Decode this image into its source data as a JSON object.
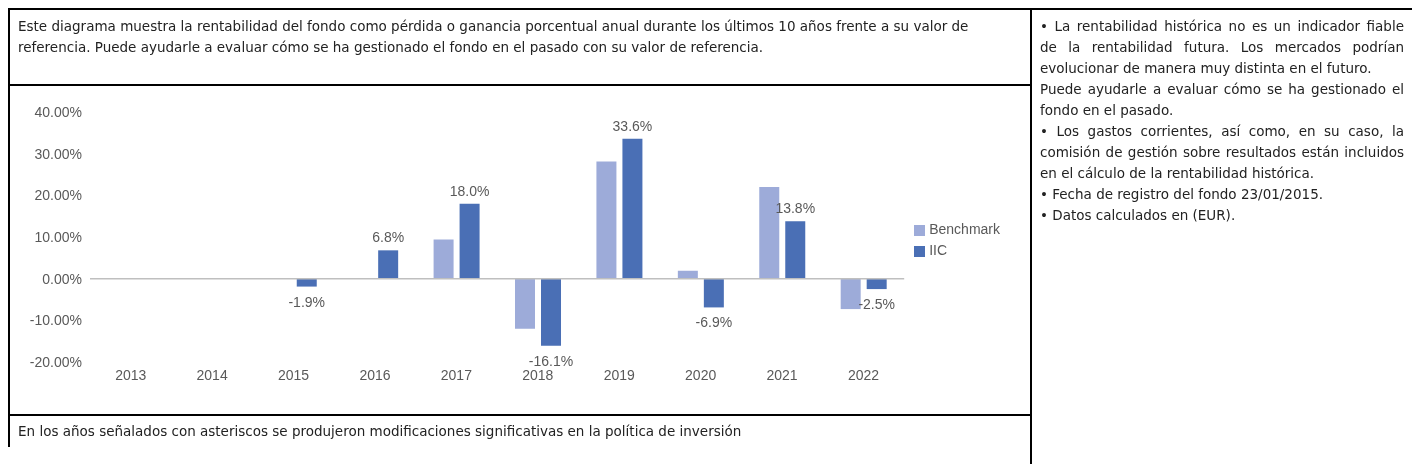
{
  "chart_data": {
    "type": "bar",
    "title": "Este diagrama muestra la rentabilidad del fondo como pérdida o ganancia porcentual anual durante los últimos 10 años frente a su valor de referencia. Puede ayudarle a evaluar cómo se ha gestionado el fondo en el pasado con su valor de referencia.",
    "categories": [
      "2013",
      "2014",
      "2015",
      "2016",
      "2017",
      "2018",
      "2019",
      "2020",
      "2021",
      "2022"
    ],
    "series": [
      {
        "name": "Benchmark",
        "color": "#9dabd9",
        "values": [
          null,
          null,
          null,
          null,
          9.4,
          -12.0,
          28.1,
          1.9,
          22.0,
          -7.3
        ]
      },
      {
        "name": "IIC",
        "color": "#4a6fb5",
        "values": [
          null,
          null,
          -1.9,
          6.8,
          18.0,
          -16.1,
          33.6,
          -6.9,
          13.8,
          -2.5
        ],
        "value_labels": [
          null,
          null,
          "-1.9%",
          "6.8%",
          "18.0%",
          "-16.1%",
          "33.6%",
          "-6.9%",
          "13.8%",
          "-2.5%"
        ]
      }
    ],
    "ylim": [
      -20,
      40
    ],
    "yticks": [
      {
        "value": -20,
        "label": "-20.00%"
      },
      {
        "value": -10,
        "label": "-10.00%"
      },
      {
        "value": 0,
        "label": "0.00%"
      },
      {
        "value": 10,
        "label": "10.00%"
      },
      {
        "value": 20,
        "label": "20.00%"
      },
      {
        "value": 30,
        "label": "30.00%"
      },
      {
        "value": 40,
        "label": "40.00%"
      }
    ],
    "grid": false,
    "ref_lines": [
      {
        "axis": "y",
        "value": 0,
        "color": "#bfbfbf"
      }
    ],
    "legend": "right",
    "annotations": [
      "En los años señalados con asteriscos se produjeron modificaciones significativas en la política de inversión",
      "• La rentabilidad histórica no es un indicador fiable de la rentabilidad futura. Los mercados podrían evolucionar de manera muy distinta en el futuro.",
      "Puede ayudarle a evaluar cómo se ha gestionado el fondo en el pasado.",
      "• Los gastos corrientes, así como, en su caso, la comisión de gestión sobre resultados están incluidos en el cálculo de la rentabilidad histórica.",
      "• Fecha de registro del fondo 23/01/2015.",
      "• Datos calculados en (EUR)."
    ]
  }
}
